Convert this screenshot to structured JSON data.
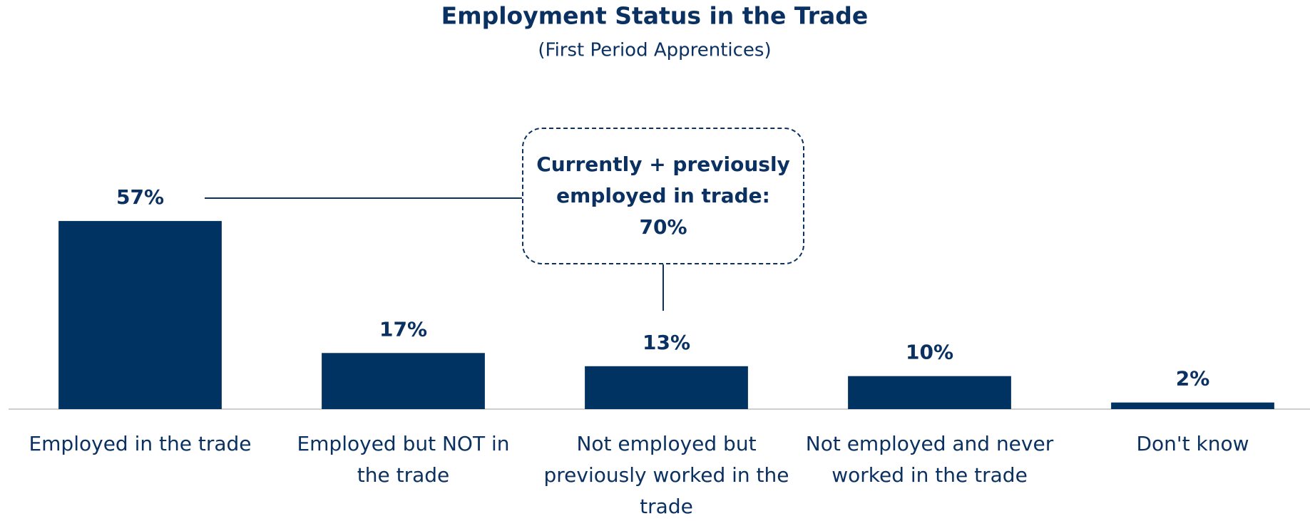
{
  "chart_data": {
    "type": "bar",
    "title": "Employment Status in the Trade",
    "subtitle": "(First Period Apprentices)",
    "categories": [
      "Employed in the trade",
      "Employed but NOT in the trade",
      "Not employed but previously worked in the trade",
      "Not employed and never worked in the trade",
      "Don't know"
    ],
    "values": [
      57,
      17,
      13,
      10,
      2
    ],
    "value_labels": [
      "57%",
      "17%",
      "13%",
      "10%",
      "2%"
    ],
    "color": "#003262",
    "ylim": [
      0,
      100
    ],
    "annotation": {
      "text": "Currently + previously employed in trade:",
      "value": 70,
      "label": "70%"
    }
  }
}
